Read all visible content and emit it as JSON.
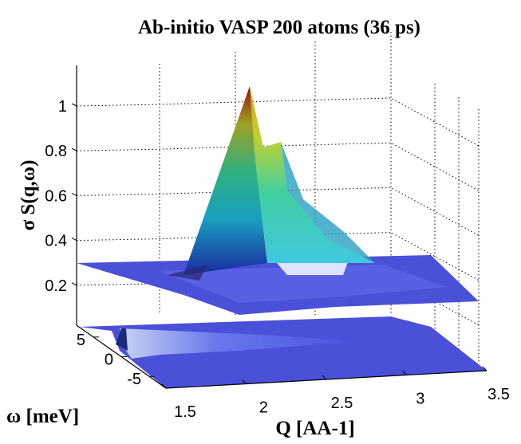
{
  "chart_data": {
    "type": "surface",
    "title": "Ab-initio VASP 200 atoms (36 ps)",
    "xlabel": "Q [AA-1]",
    "ylabel": "ω [meV]",
    "zlabel": "σ S(q,ω)",
    "x_ticks": [
      1.5,
      2,
      2.5,
      3,
      3.5
    ],
    "x_tick_labels": [
      "1.5",
      "2",
      "2.5",
      "3",
      "3.5"
    ],
    "y_ticks": [
      5,
      0,
      -5
    ],
    "y_tick_labels": [
      "5",
      "0",
      "-5"
    ],
    "z_ticks": [
      0.2,
      0.4,
      0.6,
      0.8,
      1.0
    ],
    "z_tick_labels": [
      "0.2",
      "0.4",
      "0.6",
      "0.8",
      "1"
    ],
    "xlim": [
      1.5,
      3.5
    ],
    "ylim": [
      -8,
      8
    ],
    "zlim": [
      0,
      1.2
    ],
    "grid": true,
    "colormap": "jet",
    "series": [
      {
        "name": "upper surface",
        "baseline": 0.27,
        "peak": {
          "Q": 1.9,
          "omega": 0,
          "value": 1.1
        },
        "secondary_peak": {
          "Q": 2.1,
          "omega": 0,
          "value": 0.83
        }
      },
      {
        "name": "lower surface",
        "baseline": 0.0,
        "peak": {
          "Q": 1.5,
          "omega": 0,
          "value": 0.08
        }
      }
    ]
  },
  "colors": {
    "low": "#4a4fd8",
    "mid": "#20c0c0",
    "high": "#8a1010"
  }
}
